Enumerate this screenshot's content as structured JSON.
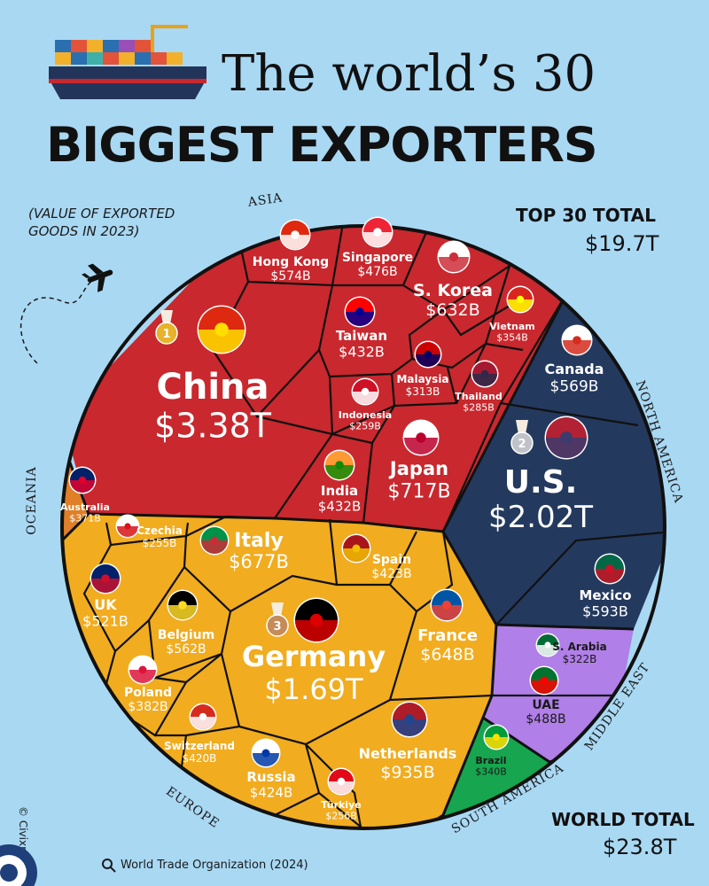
{
  "header": {
    "title_line1": "The world’s 30",
    "title_line2": "BIGGEST EXPORTERS",
    "note_line1": "(VALUE OF EXPORTED",
    "note_line2": "GOODS IN 2023)"
  },
  "totals": {
    "top30_label": "TOP 30 TOTAL",
    "top30_value": "$19.7T",
    "world_label": "WORLD TOTAL",
    "world_value": "$23.8T"
  },
  "footer": {
    "source": "World Trade Organization (2024)",
    "credit": "© Civixplorer"
  },
  "colors": {
    "Asia": "#c8282e",
    "North America": "#24395e",
    "Oceania": "#df7f27",
    "Europe": "#f1ac1f",
    "Middle East": "#b07fe8",
    "South America": "#17a54f",
    "background": "#a9d8f3"
  },
  "chart_data": {
    "type": "voronoi-treemap",
    "unit": "USD",
    "regions": [
      {
        "name": "ASIA",
        "key": "Asia"
      },
      {
        "name": "NORTH AMERICA",
        "key": "North America"
      },
      {
        "name": "OCEANIA",
        "key": "Oceania"
      },
      {
        "name": "EUROPE",
        "key": "Europe"
      },
      {
        "name": "MIDDLE EAST",
        "key": "Middle East"
      },
      {
        "name": "SOUTH AMERICA",
        "key": "South America"
      }
    ],
    "countries": [
      {
        "name": "China",
        "label": "$3.38T",
        "value": 3380,
        "region": "Asia",
        "rank": "1"
      },
      {
        "name": "Hong Kong",
        "label": "$574B",
        "value": 574,
        "region": "Asia"
      },
      {
        "name": "Singapore",
        "label": "$476B",
        "value": 476,
        "region": "Asia"
      },
      {
        "name": "S. Korea",
        "label": "$632B",
        "value": 632,
        "region": "Asia"
      },
      {
        "name": "Vietnam",
        "label": "$354B",
        "value": 354,
        "region": "Asia"
      },
      {
        "name": "Taiwan",
        "label": "$432B",
        "value": 432,
        "region": "Asia"
      },
      {
        "name": "Malaysia",
        "label": "$313B",
        "value": 313,
        "region": "Asia"
      },
      {
        "name": "Thailand",
        "label": "$285B",
        "value": 285,
        "region": "Asia"
      },
      {
        "name": "Indonesia",
        "label": "$259B",
        "value": 259,
        "region": "Asia"
      },
      {
        "name": "Japan",
        "label": "$717B",
        "value": 717,
        "region": "Asia"
      },
      {
        "name": "India",
        "label": "$432B",
        "value": 432,
        "region": "Asia"
      },
      {
        "name": "Canada",
        "label": "$569B",
        "value": 569,
        "region": "North America"
      },
      {
        "name": "U.S.",
        "label": "$2.02T",
        "value": 2020,
        "region": "North America",
        "rank": "2"
      },
      {
        "name": "Mexico",
        "label": "$593B",
        "value": 593,
        "region": "North America"
      },
      {
        "name": "Australia",
        "label": "$371B",
        "value": 371,
        "region": "Oceania"
      },
      {
        "name": "Czechia",
        "label": "$255B",
        "value": 255,
        "region": "Europe"
      },
      {
        "name": "Italy",
        "label": "$677B",
        "value": 677,
        "region": "Europe"
      },
      {
        "name": "Spain",
        "label": "$423B",
        "value": 423,
        "region": "Europe"
      },
      {
        "name": "UK",
        "label": "$521B",
        "value": 521,
        "region": "Europe"
      },
      {
        "name": "Belgium",
        "label": "$562B",
        "value": 562,
        "region": "Europe"
      },
      {
        "name": "Germany",
        "label": "$1.69T",
        "value": 1690,
        "region": "Europe",
        "rank": "3"
      },
      {
        "name": "France",
        "label": "$648B",
        "value": 648,
        "region": "Europe"
      },
      {
        "name": "Poland",
        "label": "$382B",
        "value": 382,
        "region": "Europe"
      },
      {
        "name": "Switzerland",
        "label": "$420B",
        "value": 420,
        "region": "Europe"
      },
      {
        "name": "Russia",
        "label": "$424B",
        "value": 424,
        "region": "Europe"
      },
      {
        "name": "Türkiye",
        "label": "$256B",
        "value": 256,
        "region": "Europe"
      },
      {
        "name": "Netherlands",
        "label": "$935B",
        "value": 935,
        "region": "Europe"
      },
      {
        "name": "S. Arabia",
        "label": "$322B",
        "value": 322,
        "region": "Middle East"
      },
      {
        "name": "UAE",
        "label": "$488B",
        "value": 488,
        "region": "Middle East"
      },
      {
        "name": "Brazil",
        "label": "$340B",
        "value": 340,
        "region": "South America"
      }
    ]
  }
}
